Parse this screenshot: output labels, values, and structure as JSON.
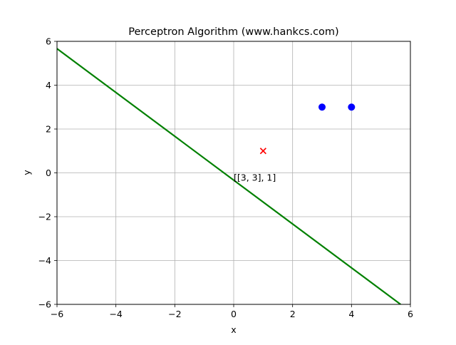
{
  "chart_data": {
    "type": "scatter",
    "title": "Perceptron Algorithm (www.hankcs.com)",
    "xlabel": "x",
    "ylabel": "y",
    "xlim": [
      -6,
      6
    ],
    "ylim": [
      -6,
      6
    ],
    "xticks": [
      -6,
      -4,
      -2,
      0,
      2,
      4,
      6
    ],
    "yticks": [
      -6,
      -4,
      -2,
      0,
      2,
      4,
      6
    ],
    "xtick_labels": [
      "−6",
      "−4",
      "−2",
      "0",
      "2",
      "4",
      "6"
    ],
    "ytick_labels": [
      "−6",
      "−4",
      "−2",
      "0",
      "2",
      "4",
      "6"
    ],
    "grid": true,
    "series": [
      {
        "marker": "circle",
        "color": "#0000ff",
        "points": [
          [
            3,
            3
          ],
          [
            4,
            3
          ]
        ]
      },
      {
        "marker": "x",
        "color": "#ff0000",
        "points": [
          [
            1,
            1
          ]
        ]
      }
    ],
    "decision_line": {
      "color": "#008000",
      "points": [
        [
          -6,
          5.667
        ],
        [
          5.667,
          -6
        ]
      ]
    },
    "annotations": [
      {
        "text": "[[3, 3], 1]",
        "x": 0,
        "y": 0
      }
    ]
  }
}
